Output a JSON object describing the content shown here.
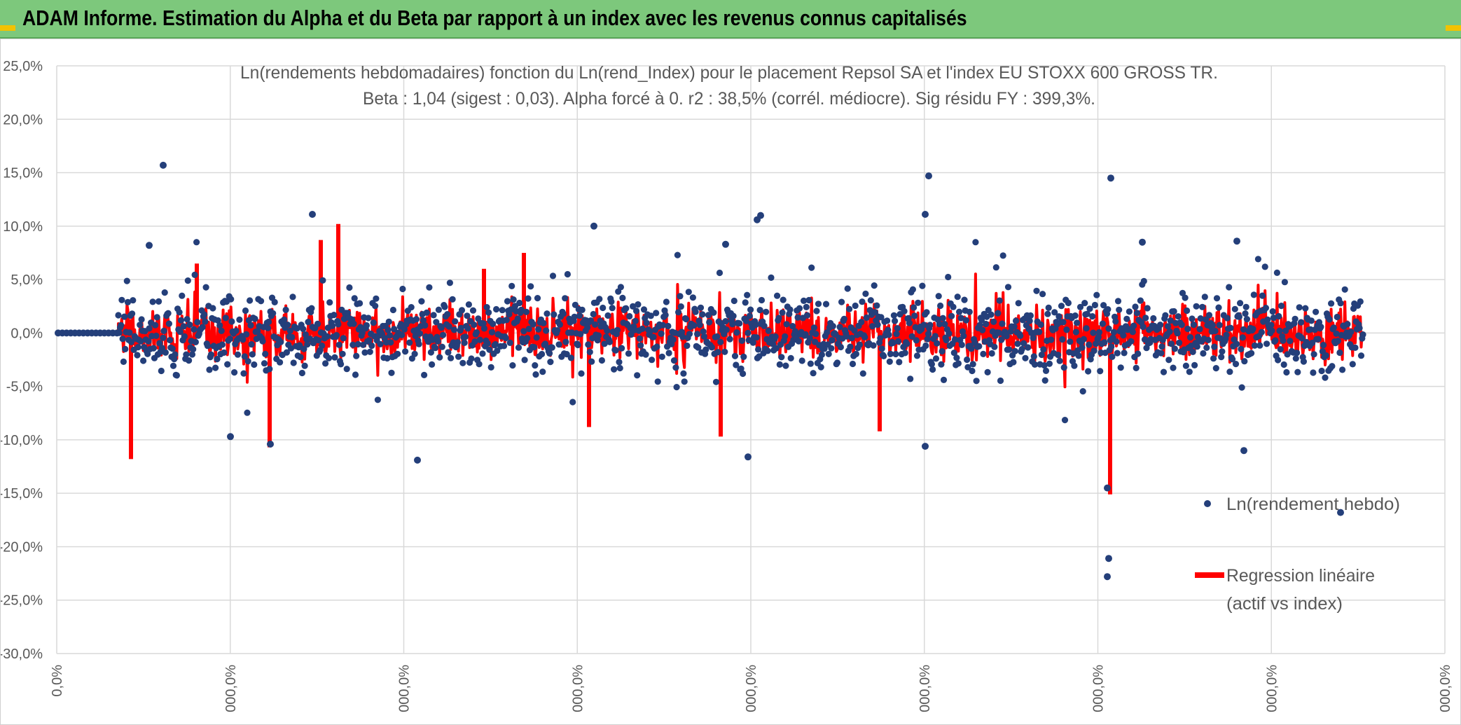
{
  "banner": {
    "title": "ADAM Informe. Estimation du Alpha et du Beta par rapport à un index avec les revenus connus capitalisés",
    "background": "#7dc87c",
    "corner_color": "#f2c200"
  },
  "chart_data": {
    "type": "scatter",
    "title": "Ln(rendements hebdomadaires) fonction du Ln(rend_Index) pour le placement Repsol SA et l'index EU STOXX 600 GROSS TR.",
    "subtitle": "Beta : 1,04 (sigest : 0,03). Alpha forcé à 0. r2 : 38,5% (corrél. médiocre). Sig résidu FY : 399,3%.",
    "xlabel": "",
    "ylabel": "",
    "ylim": [
      -0.3,
      0.25
    ],
    "y_tick_labels": [
      "25,0%",
      "20,0%",
      "15,0%",
      "10,0%",
      "5,0%",
      "0,0%",
      "-5,0%",
      "-10,0%",
      "-15,0%",
      "-20,0%",
      "-25,0%",
      "-30,0%"
    ],
    "x_tick_labels": [
      "0,0%",
      "000,0%",
      "000,0%",
      "000,0%",
      "000,0%",
      "000,0%",
      "000,0%",
      "000,0%",
      "000,0%"
    ],
    "grid": true,
    "legend_position": "bottom-right",
    "series": [
      {
        "name": "Ln(rendement hebdo)",
        "style": "points",
        "color": "#243f7a",
        "notable_values": [
          0.157,
          0.147,
          0.145,
          0.111,
          0.111,
          0.11,
          0.106,
          0.1,
          0.086,
          0.085,
          0.083,
          0.082,
          -0.097,
          -0.104,
          -0.106,
          -0.11,
          -0.116,
          -0.119,
          -0.145,
          -0.168,
          -0.211,
          -0.228
        ]
      },
      {
        "name": "Regression linéaire (actif vs index)",
        "style": "line",
        "color": "#ff0000",
        "notable_values": [
          0.102,
          0.087,
          0.075,
          0.065,
          0.06,
          -0.088,
          -0.092,
          -0.097,
          -0.107,
          -0.118,
          -0.151
        ]
      }
    ],
    "legend": {
      "points_label": "Ln(rendement hebdo)",
      "line_label_1": "Regression linéaire",
      "line_label_2": "(actif vs index)"
    },
    "colors": {
      "points": "#243f7a",
      "line": "#ff0000",
      "grid": "#d9d9d9",
      "axis_text": "#595959",
      "title_text": "#595959"
    }
  }
}
